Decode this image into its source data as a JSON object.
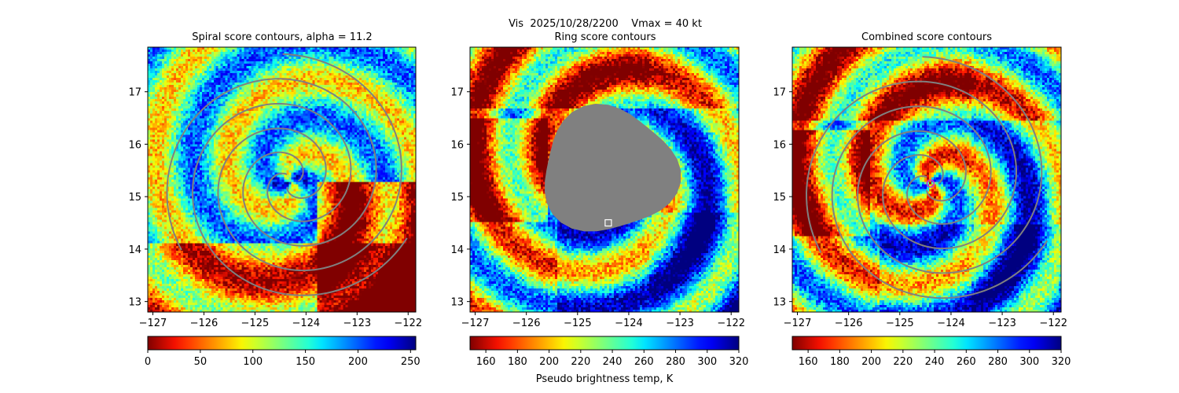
{
  "figure": {
    "suptitle_line1": "Vis  2025/10/28/2200    Vmax = 40 kt",
    "suptitle_line2": "Ring score contours",
    "colorbar_label": "Pseudo brightness temp, K"
  },
  "chart_data": [
    {
      "type": "heatmap",
      "title": "Spiral score contours, alpha = 11.2",
      "xlabel": "",
      "ylabel": "",
      "xlim": [
        -127.1,
        -121.85
      ],
      "ylim": [
        12.8,
        17.85
      ],
      "xticks": [
        -127,
        -126,
        -125,
        -124,
        -123,
        -122
      ],
      "yticks": [
        13,
        14,
        15,
        16,
        17
      ],
      "colorbar": {
        "ticks": [
          0,
          50,
          100,
          150,
          200,
          250
        ],
        "range": [
          0,
          255
        ],
        "colormap": "jet_r"
      },
      "storm_center": [
        -124.3,
        15.3
      ],
      "overlay": "spiral contours (gray)",
      "overlay_color": "#808080"
    },
    {
      "type": "heatmap",
      "title": "",
      "xlabel": "",
      "ylabel": "",
      "xlim": [
        -127.1,
        -121.85
      ],
      "ylim": [
        12.8,
        17.85
      ],
      "xticks": [
        -127,
        -126,
        -125,
        -124,
        -123,
        -122
      ],
      "yticks": [
        13,
        14,
        15,
        16,
        17
      ],
      "colorbar": {
        "ticks": [
          160,
          180,
          200,
          220,
          240,
          260,
          280,
          300,
          320
        ],
        "range": [
          150,
          320
        ],
        "colormap": "jet_r"
      },
      "masked_region_center": [
        -124.4,
        15.5
      ],
      "marker": {
        "shape": "square",
        "lon": -124.4,
        "lat": 14.5,
        "color": "#ffffff"
      },
      "overlay": "masked ring area (gray)",
      "overlay_color": "#808080"
    },
    {
      "type": "heatmap",
      "title": "Combined score contours",
      "xlabel": "",
      "ylabel": "",
      "xlim": [
        -127.1,
        -121.85
      ],
      "ylim": [
        12.8,
        17.85
      ],
      "xticks": [
        -127,
        -126,
        -125,
        -124,
        -123,
        -122
      ],
      "yticks": [
        13,
        14,
        15,
        16,
        17
      ],
      "colorbar": {
        "ticks": [
          160,
          180,
          200,
          220,
          240,
          260,
          280,
          300,
          320
        ],
        "range": [
          150,
          320
        ],
        "colormap": "jet_r"
      },
      "storm_center": [
        -124.4,
        15.25
      ],
      "marker": {
        "shape": "circle",
        "lon": -124.4,
        "lat": 15.25,
        "color": "#cc33cc"
      },
      "overlay": "combined contours (gray)",
      "overlay_color": "#808080"
    }
  ]
}
